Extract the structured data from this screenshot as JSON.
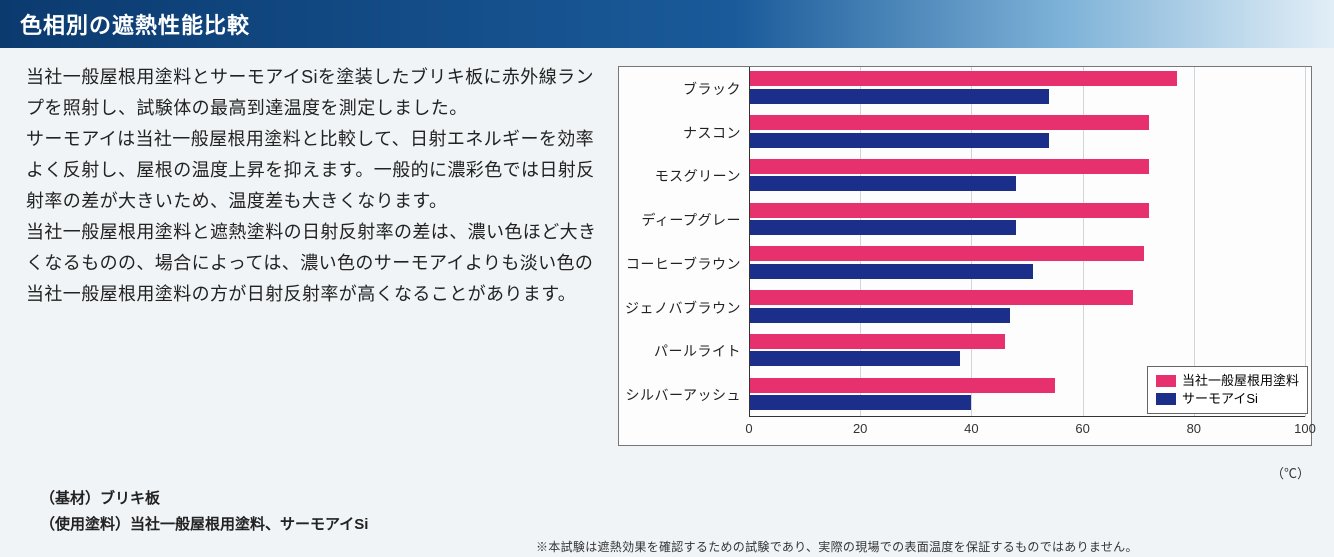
{
  "header": {
    "title": "色相別の遮熱性能比較"
  },
  "paragraphs": [
    "当社一般屋根用塗料とサーモアイSiを塗装したブリキ板に赤外線ランプを照射し、試験体の最高到達温度を測定しました。",
    "サーモアイは当社一般屋根用塗料と比較して、日射エネルギーを効率よく反射し、屋根の温度上昇を抑えます。一般的に濃彩色では日射反射率の差が大きいため、温度差も大きくなります。",
    "当社一般屋根用塗料と遮熱塗料の日射反射率の差は、濃い色ほど大きくなるものの、場合によっては、濃い色のサーモアイよりも淡い色の当社一般屋根用塗料の方が日射反射率が高くなることがあります。"
  ],
  "spec": {
    "line1": "（基材）ブリキ板",
    "line2": "（使用塗料）当社一般屋根用塗料、サーモアイSi"
  },
  "disclaimer": "※本試験は遮熱効果を確認するための試験であり、実際の現場での表面温度を保証するものではありません。",
  "chart": {
    "type": "bar-horizontal-grouped",
    "xmin": 0,
    "xmax": 100,
    "xtick_step": 20,
    "xticks": [
      0,
      20,
      40,
      60,
      80,
      100
    ],
    "xunit": "（℃）",
    "grid_color": "#cfd6db",
    "background_color": "#fdfdfe",
    "border_color": "#777",
    "label_fontsize": 14,
    "tick_fontsize": 13,
    "series": [
      {
        "key": "general",
        "label": "当社一般屋根用塗料",
        "color": "#e6316e"
      },
      {
        "key": "thermo",
        "label": "サーモアイSi",
        "color": "#1b2f8a"
      }
    ],
    "categories": [
      {
        "label": "ブラック",
        "general": 77,
        "thermo": 54
      },
      {
        "label": "ナスコン",
        "general": 72,
        "thermo": 54
      },
      {
        "label": "モスグリーン",
        "general": 72,
        "thermo": 48
      },
      {
        "label": "ディープグレー",
        "general": 72,
        "thermo": 48
      },
      {
        "label": "コーヒーブラウン",
        "general": 71,
        "thermo": 51
      },
      {
        "label": "ジェノバブラウン",
        "general": 69,
        "thermo": 47
      },
      {
        "label": "パールライト",
        "general": 46,
        "thermo": 38
      },
      {
        "label": "シルバーアッシュ",
        "general": 55,
        "thermo": 40
      }
    ],
    "legend_position": "bottom-right-inside"
  }
}
